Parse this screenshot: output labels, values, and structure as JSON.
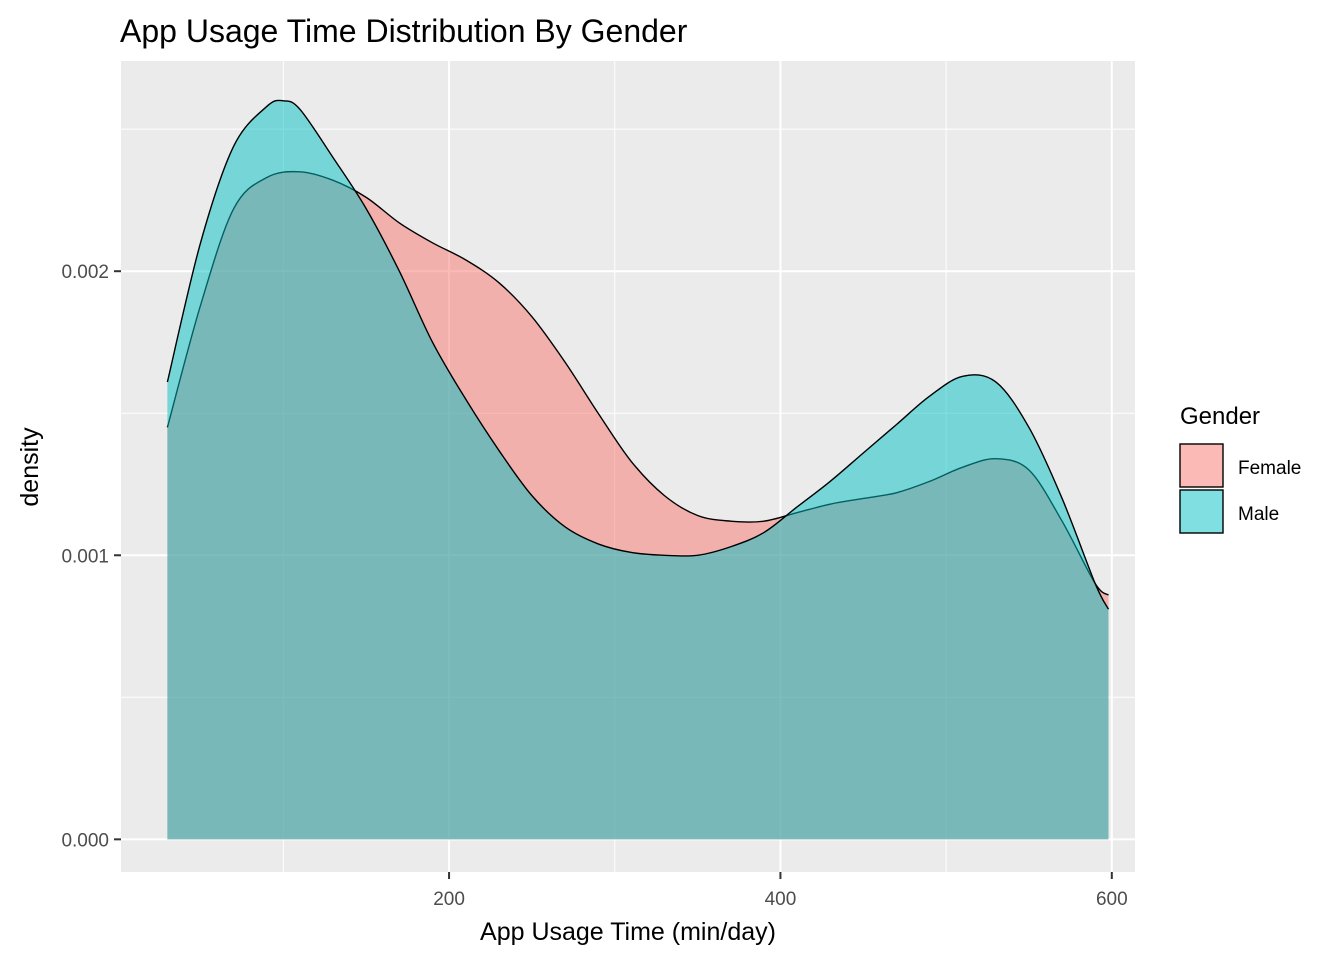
{
  "chart_data": {
    "type": "area",
    "subtype": "density",
    "title": "App Usage Time Distribution By Gender",
    "xlabel": "App Usage Time (min/day)",
    "ylabel": "density",
    "xlim": [
      2,
      614
    ],
    "ylim": [
      -0.000115,
      0.00274
    ],
    "x_ticks": [
      200,
      400,
      600
    ],
    "x_tick_labels": [
      "200",
      "400",
      "600"
    ],
    "y_ticks": [
      0.0,
      0.001,
      0.002
    ],
    "y_tick_labels": [
      "0.000",
      "0.001",
      "0.002"
    ],
    "grid": true,
    "legend": {
      "title": "Gender",
      "position": "right"
    },
    "series": [
      {
        "name": "Female",
        "color": "#F8766D",
        "x": [
          30,
          50,
          70,
          90,
          110,
          130,
          150,
          170,
          190,
          210,
          230,
          250,
          270,
          290,
          310,
          330,
          350,
          370,
          390,
          410,
          430,
          450,
          470,
          490,
          510,
          530,
          550,
          570,
          590,
          598
        ],
        "y": [
          0.00145,
          0.00188,
          0.00222,
          0.00233,
          0.00235,
          0.00232,
          0.00226,
          0.00217,
          0.0021,
          0.00204,
          0.00196,
          0.00184,
          0.00168,
          0.0015,
          0.00133,
          0.00121,
          0.00114,
          0.00112,
          0.00112,
          0.00115,
          0.00118,
          0.0012,
          0.00122,
          0.00126,
          0.00131,
          0.00134,
          0.0013,
          0.00112,
          0.0009,
          0.00086
        ]
      },
      {
        "name": "Male",
        "color": "#00BFC4",
        "x": [
          30,
          50,
          70,
          90,
          100,
          110,
          130,
          150,
          170,
          190,
          210,
          230,
          250,
          270,
          290,
          310,
          330,
          350,
          370,
          390,
          410,
          430,
          450,
          470,
          490,
          510,
          530,
          550,
          570,
          590,
          598
        ],
        "y": [
          0.00161,
          0.0021,
          0.00244,
          0.00258,
          0.0026,
          0.00257,
          0.0024,
          0.00222,
          0.002,
          0.00175,
          0.00155,
          0.00137,
          0.00121,
          0.0011,
          0.00104,
          0.00101,
          0.001,
          0.001,
          0.00103,
          0.00108,
          0.00117,
          0.00126,
          0.00136,
          0.00146,
          0.00156,
          0.00163,
          0.00161,
          0.00145,
          0.0012,
          0.0009,
          0.00081
        ]
      }
    ]
  }
}
